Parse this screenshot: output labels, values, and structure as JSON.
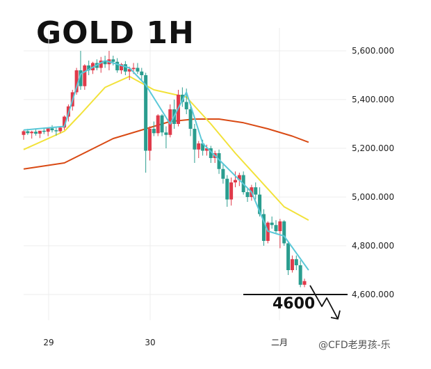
{
  "chart_data": {
    "type": "candlestick",
    "title": "GOLD 1H",
    "y_ticks": [
      5600,
      5400,
      5200,
      5000,
      4800,
      4600
    ],
    "y_tick_labels": [
      "5,600.000",
      "5,400.000",
      "5,200.000",
      "5,000.000",
      "4,800.000",
      "4,600.000"
    ],
    "ylim": [
      4430,
      5700
    ],
    "x_tick_labels": [
      "29",
      "30",
      "二月"
    ],
    "grid": true,
    "colors": {
      "up": "#e03a4a",
      "down": "#2a9d8f",
      "ma_fast": "#5bc8d8",
      "ma_mid": "#f2e23a",
      "ma_slow": "#d94a14",
      "support": "#111111"
    },
    "candles": [
      [
        5255,
        5275,
        5235,
        5270
      ],
      [
        5270,
        5280,
        5255,
        5262
      ],
      [
        5262,
        5272,
        5240,
        5268
      ],
      [
        5268,
        5282,
        5252,
        5260
      ],
      [
        5260,
        5270,
        5242,
        5272
      ],
      [
        5272,
        5285,
        5258,
        5268
      ],
      [
        5268,
        5278,
        5250,
        5282
      ],
      [
        5282,
        5295,
        5265,
        5274
      ],
      [
        5274,
        5285,
        5252,
        5270
      ],
      [
        5270,
        5290,
        5262,
        5285
      ],
      [
        5285,
        5335,
        5275,
        5330
      ],
      [
        5330,
        5380,
        5310,
        5372
      ],
      [
        5372,
        5440,
        5355,
        5430
      ],
      [
        5430,
        5530,
        5420,
        5520
      ],
      [
        5520,
        5600,
        5440,
        5455
      ],
      [
        5455,
        5545,
        5440,
        5540
      ],
      [
        5540,
        5560,
        5500,
        5520
      ],
      [
        5520,
        5555,
        5505,
        5550
      ],
      [
        5550,
        5565,
        5520,
        5530
      ],
      [
        5530,
        5575,
        5510,
        5560
      ],
      [
        5560,
        5580,
        5530,
        5545
      ],
      [
        5545,
        5600,
        5520,
        5565
      ],
      [
        5565,
        5580,
        5540,
        5555
      ],
      [
        5555,
        5570,
        5510,
        5520
      ],
      [
        5520,
        5550,
        5505,
        5545
      ],
      [
        5545,
        5558,
        5500,
        5515
      ],
      [
        5515,
        5535,
        5480,
        5525
      ],
      [
        5525,
        5550,
        5505,
        5530
      ],
      [
        5530,
        5550,
        5505,
        5515
      ],
      [
        5515,
        5530,
        5480,
        5500
      ],
      [
        5500,
        5510,
        5100,
        5190
      ],
      [
        5190,
        5290,
        5150,
        5280
      ],
      [
        5280,
        5310,
        5250,
        5262
      ],
      [
        5262,
        5340,
        5250,
        5335
      ],
      [
        5335,
        5340,
        5250,
        5265
      ],
      [
        5265,
        5290,
        5200,
        5255
      ],
      [
        5255,
        5380,
        5245,
        5360
      ],
      [
        5360,
        5400,
        5280,
        5300
      ],
      [
        5300,
        5440,
        5290,
        5420
      ],
      [
        5420,
        5450,
        5370,
        5390
      ],
      [
        5390,
        5445,
        5340,
        5360
      ],
      [
        5360,
        5370,
        5250,
        5280
      ],
      [
        5280,
        5300,
        5140,
        5195
      ],
      [
        5195,
        5230,
        5160,
        5220
      ],
      [
        5220,
        5235,
        5170,
        5190
      ],
      [
        5190,
        5215,
        5170,
        5200
      ],
      [
        5200,
        5210,
        5140,
        5160
      ],
      [
        5160,
        5190,
        5140,
        5180
      ],
      [
        5180,
        5195,
        5095,
        5115
      ],
      [
        5115,
        5140,
        5055,
        5075
      ],
      [
        5075,
        5090,
        4960,
        4990
      ],
      [
        4990,
        5080,
        4965,
        5060
      ],
      [
        5060,
        5105,
        5040,
        5070
      ],
      [
        5070,
        5100,
        5045,
        5090
      ],
      [
        5090,
        5105,
        5010,
        5020
      ],
      [
        5020,
        5035,
        4980,
        5000
      ],
      [
        5000,
        5050,
        4985,
        5040
      ],
      [
        5040,
        5060,
        4990,
        5010
      ],
      [
        5010,
        5040,
        4920,
        4930
      ],
      [
        4930,
        4950,
        4800,
        4820
      ],
      [
        4820,
        4900,
        4810,
        4895
      ],
      [
        4895,
        4920,
        4870,
        4885
      ],
      [
        4885,
        4905,
        4850,
        4860
      ],
      [
        4860,
        4910,
        4790,
        4900
      ],
      [
        4900,
        4905,
        4800,
        4810
      ],
      [
        4810,
        4820,
        4680,
        4700
      ],
      [
        4700,
        4760,
        4690,
        4745
      ],
      [
        4745,
        4760,
        4700,
        4720
      ],
      [
        4720,
        4740,
        4630,
        4640
      ],
      [
        4640,
        4665,
        4630,
        4655
      ]
    ],
    "ma_fast": [
      [
        0,
        5275
      ],
      [
        10,
        5290
      ],
      [
        14,
        5505
      ],
      [
        20,
        5560
      ],
      [
        26,
        5530
      ],
      [
        30,
        5460
      ],
      [
        36,
        5300
      ],
      [
        40,
        5430
      ],
      [
        44,
        5220
      ],
      [
        50,
        5120
      ],
      [
        56,
        5020
      ],
      [
        60,
        4860
      ],
      [
        64,
        4840
      ],
      [
        70,
        4700
      ]
    ],
    "ma_mid": [
      [
        0,
        5195
      ],
      [
        10,
        5270
      ],
      [
        14,
        5340
      ],
      [
        20,
        5450
      ],
      [
        26,
        5495
      ],
      [
        32,
        5440
      ],
      [
        40,
        5410
      ],
      [
        46,
        5300
      ],
      [
        52,
        5180
      ],
      [
        58,
        5070
      ],
      [
        64,
        4960
      ],
      [
        70,
        4905
      ]
    ],
    "ma_slow": [
      [
        0,
        5115
      ],
      [
        10,
        5140
      ],
      [
        16,
        5190
      ],
      [
        22,
        5240
      ],
      [
        30,
        5280
      ],
      [
        36,
        5310
      ],
      [
        42,
        5320
      ],
      [
        48,
        5320
      ],
      [
        54,
        5305
      ],
      [
        60,
        5280
      ],
      [
        66,
        5250
      ],
      [
        70,
        5225
      ]
    ],
    "annotation": "4600",
    "watermark": "@CFD老男孩-乐"
  }
}
